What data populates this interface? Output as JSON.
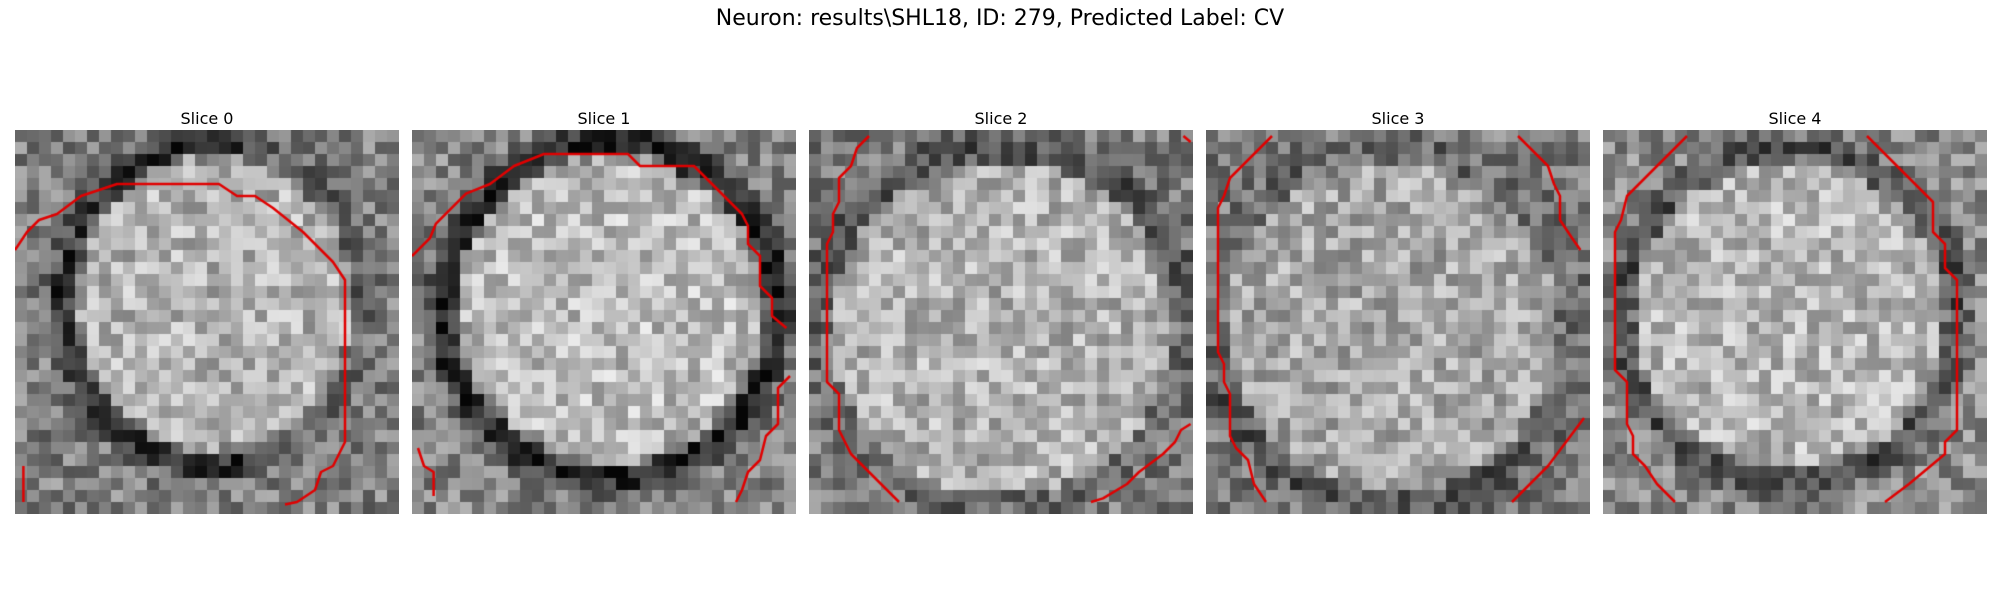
{
  "title": "Neuron: results\\SHL18, ID: 279, Predicted Label: CV",
  "colors": {
    "contour": "#e00000",
    "background": "#ffffff"
  },
  "slices": [
    {
      "label": "Slice 0"
    },
    {
      "label": "Slice 1"
    },
    {
      "label": "Slice 2"
    },
    {
      "label": "Slice 3"
    },
    {
      "label": "Slice 4"
    }
  ]
}
